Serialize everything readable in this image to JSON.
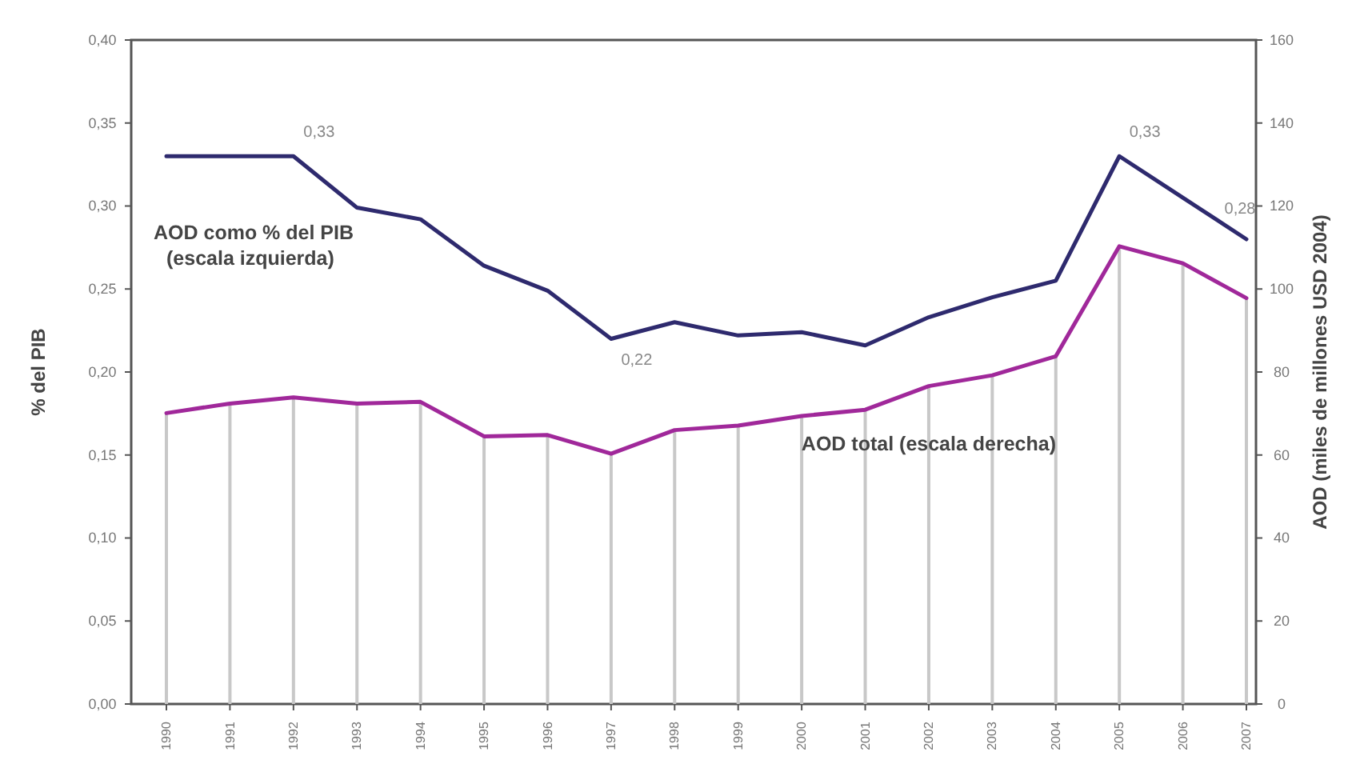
{
  "chart_data": {
    "type": "line",
    "ylabel": "% del PIB",
    "y2label": "AOD (miles de millones USD 2004)",
    "categories": [
      "1990",
      "1991",
      "1992",
      "1993",
      "1994",
      "1995",
      "1996",
      "1997",
      "1998",
      "1999",
      "2000",
      "2001",
      "2002",
      "2003",
      "2004",
      "2005",
      "2006",
      "2007"
    ],
    "ylim": [
      0,
      0.4
    ],
    "yticks": [
      {
        "value": 0,
        "label": "0,00"
      },
      {
        "value": 0.05,
        "label": "0,05"
      },
      {
        "value": 0.1,
        "label": "0,10"
      },
      {
        "value": 0.15,
        "label": "0,15"
      },
      {
        "value": 0.2,
        "label": "0,20"
      },
      {
        "value": 0.25,
        "label": "0,25"
      },
      {
        "value": 0.3,
        "label": "0,30"
      },
      {
        "value": 0.35,
        "label": "0,35"
      },
      {
        "value": 0.4,
        "label": "0,40"
      }
    ],
    "y2lim": [
      0,
      160
    ],
    "y2ticks": [
      0,
      20,
      40,
      60,
      80,
      100,
      120,
      140,
      160
    ],
    "marker": "none",
    "grid": false,
    "series": [
      {
        "type": "bar",
        "color": "#c8c8c8",
        "axis": "y2",
        "values": [
          70.1,
          72.4,
          73.9,
          72.4,
          72.8,
          64.5,
          64.8,
          60.3,
          66,
          67.1,
          69.4,
          70.9,
          76.6,
          79.2,
          83.8,
          110.3,
          106.2,
          97.8
        ]
      },
      {
        "name": "AOD como % del PIB (escala izquierda)",
        "color": "#2e2a6e",
        "values": [
          0.33,
          0.33,
          0.33,
          0.299,
          0.292,
          0.264,
          0.249,
          0.22,
          0.23,
          0.222,
          0.224,
          0.216,
          0.233,
          0.245,
          0.255,
          0.33,
          0.305,
          0.28
        ],
        "value_labels": [
          null,
          null,
          "0,33",
          null,
          null,
          null,
          null,
          "0,22",
          null,
          null,
          null,
          null,
          null,
          null,
          null,
          "0,33",
          null,
          "0,28"
        ]
      },
      {
        "name": "AOD total (escala derecha)",
        "color": "#a0289a",
        "axis": "y2",
        "values": [
          70.1,
          72.4,
          73.9,
          72.4,
          72.8,
          64.5,
          64.8,
          60.3,
          66,
          67.1,
          69.4,
          70.9,
          76.6,
          79.2,
          83.8,
          110.3,
          106.2,
          97.8
        ]
      }
    ]
  }
}
